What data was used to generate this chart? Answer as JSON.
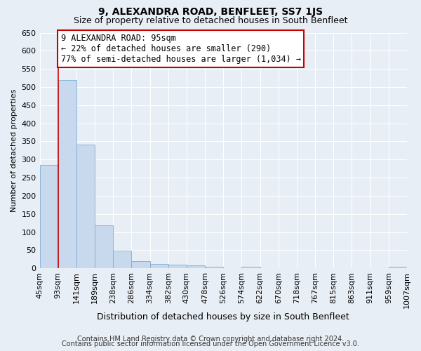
{
  "title": "9, ALEXANDRA ROAD, BENFLEET, SS7 1JS",
  "subtitle": "Size of property relative to detached houses in South Benfleet",
  "xlabel": "Distribution of detached houses by size in South Benfleet",
  "ylabel": "Number of detached properties",
  "bar_values": [
    285,
    520,
    342,
    119,
    48,
    20,
    12,
    10,
    8,
    5,
    0,
    5,
    0,
    0,
    0,
    0,
    0,
    0,
    0,
    5
  ],
  "bar_labels": [
    "45sqm",
    "93sqm",
    "141sqm",
    "189sqm",
    "238sqm",
    "286sqm",
    "334sqm",
    "382sqm",
    "430sqm",
    "478sqm",
    "526sqm",
    "574sqm",
    "622sqm",
    "670sqm",
    "718sqm",
    "767sqm",
    "815sqm",
    "863sqm",
    "911sqm",
    "959sqm",
    "1007sqm"
  ],
  "bar_color": "#c8d9ee",
  "bar_edge_color": "#7bafd4",
  "ylim": [
    0,
    650
  ],
  "yticks": [
    0,
    50,
    100,
    150,
    200,
    250,
    300,
    350,
    400,
    450,
    500,
    550,
    600,
    650
  ],
  "property_line_x": 1.0,
  "property_line_color": "#cc0000",
  "annotation_text": "9 ALEXANDRA ROAD: 95sqm\n← 22% of detached houses are smaller (290)\n77% of semi-detached houses are larger (1,034) →",
  "annotation_box_color": "#ffffff",
  "annotation_box_edge": "#cc0000",
  "footer_line1": "Contains HM Land Registry data © Crown copyright and database right 2024.",
  "footer_line2": "Contains public sector information licensed under the Open Government Licence v3.0.",
  "background_color": "#e8eef5",
  "plot_bg_color": "#e8eef5",
  "grid_color": "#ffffff",
  "title_fontsize": 10,
  "subtitle_fontsize": 9,
  "xlabel_fontsize": 9,
  "ylabel_fontsize": 8,
  "tick_fontsize": 8,
  "footer_fontsize": 7
}
